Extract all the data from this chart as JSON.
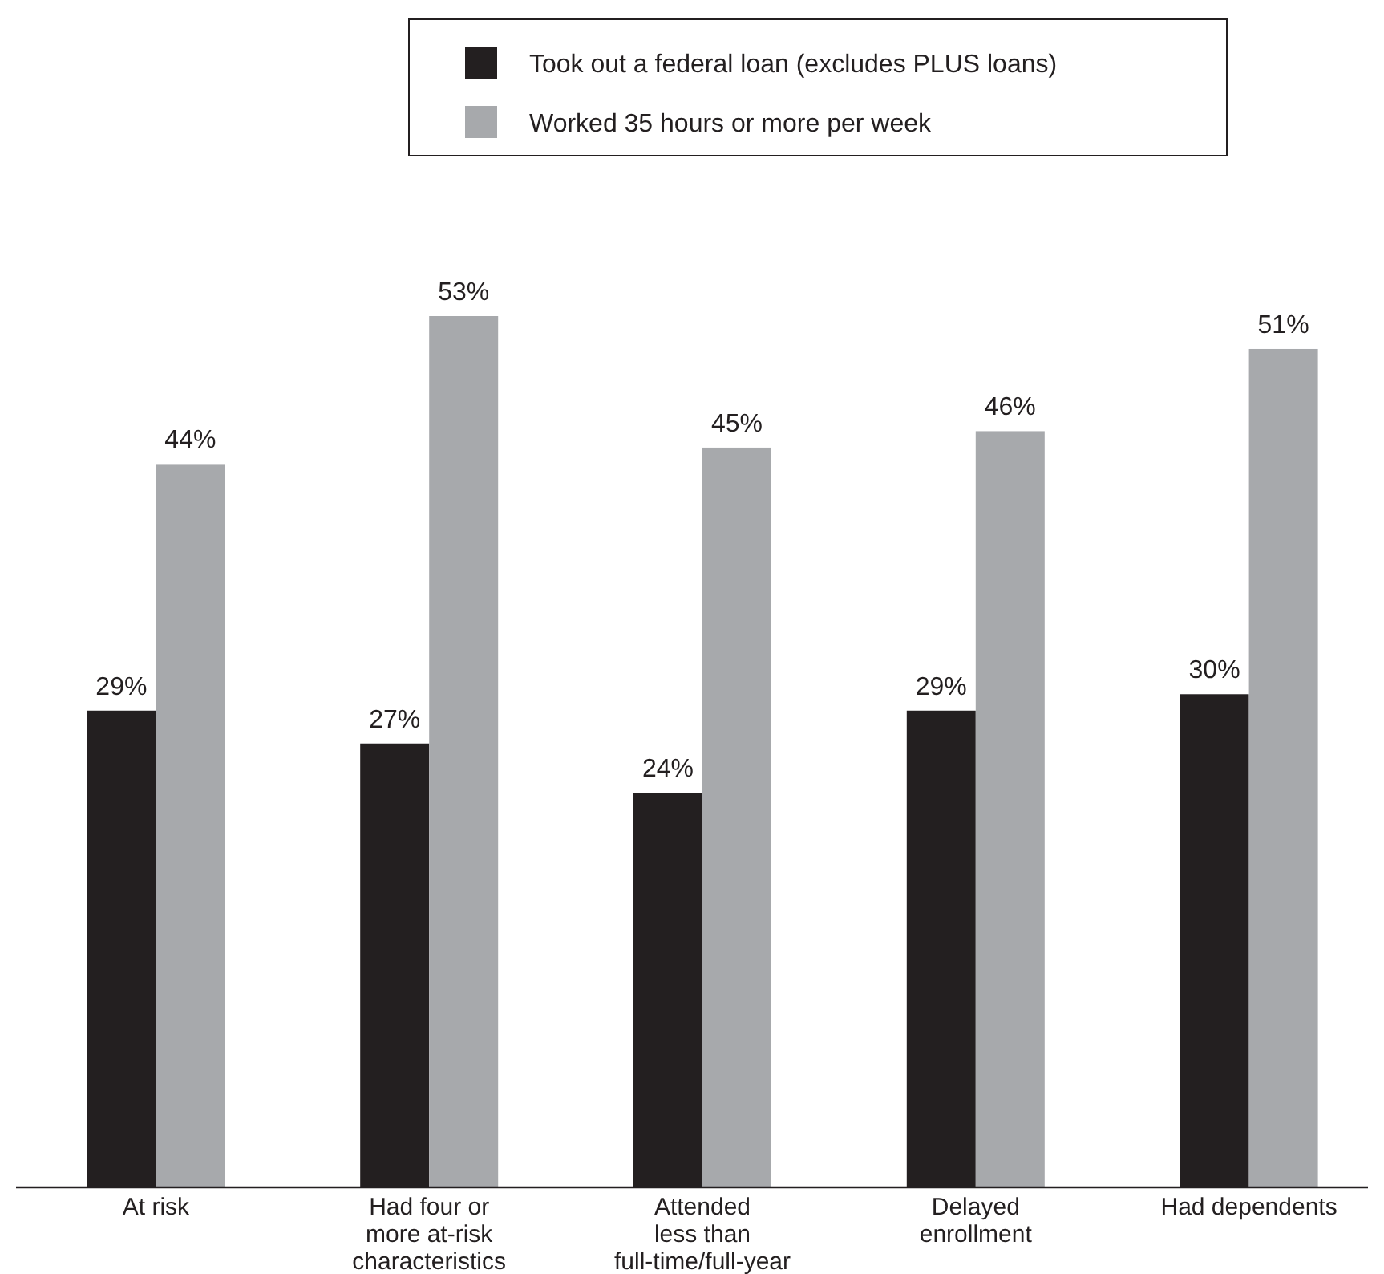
{
  "chart_data": {
    "type": "bar",
    "categories": [
      "At risk",
      "Had four or\nmore at-risk\ncharacteristics",
      "Attended\nless than\nfull-time/full-year",
      "Delayed\nenrollment",
      "Had dependents"
    ],
    "series": [
      {
        "name": "Took out a federal loan (excludes PLUS loans)",
        "color": "#231f20",
        "values": [
          29,
          27,
          24,
          29,
          30
        ],
        "value_labels": [
          "29%",
          "27%",
          "24%",
          "29%",
          "30%"
        ]
      },
      {
        "name": "Worked 35 hours or more per week",
        "color": "#a7a9ac",
        "values": [
          44,
          53,
          45,
          46,
          51
        ],
        "value_labels": [
          "44%",
          "53%",
          "45%",
          "46%",
          "51%"
        ]
      }
    ],
    "legend": "top",
    "grid": false
  }
}
